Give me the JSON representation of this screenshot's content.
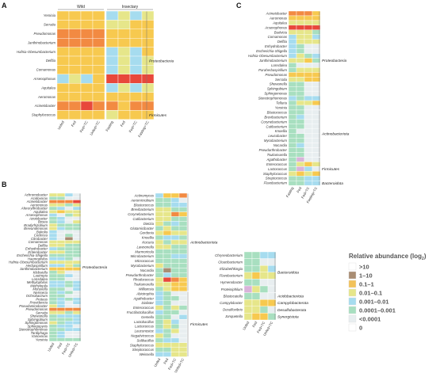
{
  "palette": {
    "6": "#e8483b",
    "5": "#f28a42",
    "4": "#f7c94f",
    "3": "#e6e68a",
    "2": "#a8dfc0",
    "1": "#a6dcef",
    "0": "#e8eef0",
    "9": "#a98d73",
    "8": "#d9b3da",
    "e": "#ffffff"
  },
  "legend": {
    "title": "Relative abundance (log",
    "title_sub": "2",
    "title_end": ")",
    "items": [
      {
        "label": ">10",
        "color": "#ffffff"
      },
      {
        "label": "1–10",
        "color": "#a98d73"
      },
      {
        "label": "0.1–1",
        "color": "#f2c25a"
      },
      {
        "label": "0.01–0.1",
        "color": "#e6e68a"
      },
      {
        "label": "0.001–0.01",
        "color": "#a6dcef"
      },
      {
        "label": "0.0001–0.001",
        "color": "#a8dfc0"
      },
      {
        "label": "<0.0001",
        "color": "#e8eef0"
      },
      {
        "label": "0",
        "color": "#ffffff"
      }
    ]
  },
  "chart_data": [
    {
      "type": "heatmap",
      "panel": "A",
      "column_groups": [
        {
          "name": "Wild",
          "columns": 4
        },
        {
          "name": "Insectary",
          "columns": 4
        }
      ],
      "columns": [
        "Unfed",
        "Fed",
        "Fed+TC",
        "Unfed+TC",
        "Fasting",
        "Fed",
        "Fed+TC",
        "Fasting+TC"
      ],
      "rows": [
        "Yersinia",
        "Serratia",
        "Pseudomonas",
        "Janthinobacterium",
        "Hafnia-Obesumbacterium",
        "Delftia",
        "Comamonas",
        "Arsenophonus",
        "Aquitalea",
        "Aeromonas",
        "Acinetobacter",
        "Staphylococcus"
      ],
      "values": [
        "44441313",
        "44443344",
        "55554444",
        "55554444",
        "44441314",
        "44441313",
        "44441313",
        "13146666",
        "44441313",
        "44444444",
        "55655455",
        "44443444"
      ],
      "phyla": [
        {
          "name": "Proteobacteria",
          "from": 0,
          "to": 10
        },
        {
          "name": "Firmicutes",
          "from": 11,
          "to": 11
        }
      ]
    },
    {
      "type": "heatmap",
      "panel": "B-left",
      "columns": [
        "Unfed",
        "Fed",
        "Fed+TC",
        "Unfed+TC"
      ],
      "rows": [
        "Achromobacter",
        "Acidovorax",
        "Acinetobacter",
        "Aeromonas",
        "Afererythrobacter",
        "Aquitalea",
        "Arsenophonus",
        "Azotobacter",
        "Bosea",
        "Bradyrhizobium",
        "Brevundimonas",
        "Bukolia",
        "Cedecea",
        "Citrobacter",
        "Comamonas",
        "Delftia",
        "Enhydrobacter",
        "Enterobacter",
        "Escherichia-Shigella",
        "Haemophilus",
        "Hafnia-Obesumbacterium",
        "Herbaspirillum",
        "Janthinobacterium",
        "Klebsiella",
        "Lautropia",
        "Lonsdalea",
        "Methylophilus",
        "Methylopila",
        "Moraxella",
        "Neisseria",
        "Ochrobactrum",
        "Proteus",
        "Providencia",
        "Pseudaminobacter",
        "Pseudomonas",
        "Serratia",
        "Shewanella",
        "Sphingobium",
        "Sphingomonas",
        "Sphingopyxis",
        "Stenotrophomonas",
        "Tardiphaga",
        "Vanovorax",
        "Yersinia"
      ],
      "values": [
        "3310",
        "2200",
        "5556",
        "3323",
        "2101",
        "3433",
        "1023",
        "2100",
        "2103",
        "3222",
        "3122",
        "1000",
        "1020",
        "1090",
        "3333",
        "3322",
        "1222",
        "3322",
        "2222",
        "1120",
        "3333",
        "1132",
        "4444",
        "2300",
        "2210",
        "2200",
        "1121",
        "1121",
        "2201",
        "2120",
        "2200",
        "2121",
        "2101",
        "3100",
        "5555",
        "3323",
        "2111",
        "2221",
        "3211",
        "2110",
        "2211",
        "2100",
        "2100",
        "2222"
      ],
      "phyla": [
        {
          "name": "Proteobacteria",
          "from": 0,
          "to": 43
        }
      ]
    },
    {
      "type": "heatmap",
      "panel": "B-right",
      "columns": [
        "Unfed",
        "Fed",
        "Fed+TC",
        "Unfed+TC"
      ],
      "rows": [
        "Actinomyces",
        "Aeromicrobium",
        "Blastococcus",
        "Brevibacterium",
        "Corynebacterium",
        "Cutibacterium",
        "Dietzia",
        "Glutamicibacter",
        "Gordonia",
        "Knoellia",
        "Kocuria",
        "Lawsonella",
        "Marmoricola",
        "Microbacterium",
        "Micrococcus",
        "Mycobacterium",
        "Nocardia",
        "Pseudarthrobacter",
        "Rhodococcus",
        "Tsukamurella",
        "Williamsia",
        "Abiotrophia",
        "Agathobacter",
        "Dialister",
        "Enterococcus",
        "Fructilactobacillus",
        "Gemella",
        "Lactobacillus",
        "Lactococcus",
        "Leuconostoc",
        "Negativicoccus",
        "Solibacillus",
        "Staphylococcus",
        "Streptococcus",
        "Weissella"
      ],
      "values": [
        "1445",
        "2210",
        "2211",
        "3322",
        "3354",
        "3322",
        "3212",
        "2322",
        "3433",
        "2112",
        "3233",
        "3322",
        "2222",
        "2211",
        "2222",
        "3222",
        "2922",
        "2122",
        "3654",
        "3344",
        "2344",
        "1200",
        "1220",
        "1200",
        "3232",
        "1220",
        "2201",
        "2310",
        "2320",
        "1230",
        "3200",
        "2110",
        "3333",
        "2233",
        "1133"
      ],
      "phyla": [
        {
          "name": "Actinobacteriota",
          "from": 0,
          "to": 20
        },
        {
          "name": "Firmicutes",
          "from": 21,
          "to": 34
        }
      ]
    },
    {
      "type": "heatmap",
      "panel": "C",
      "columns": [
        "Fasting",
        "Fed",
        "Fed+TC",
        "Fasting+TC"
      ],
      "rows": [
        "Acinetobacter",
        "Aeromonas",
        "Aquitalea",
        "Arsenophonus",
        "Budvicia",
        "Comamonas",
        "Delftia",
        "Enhydrobacter",
        "Escherichia-Shigella",
        "Hafnia-Obesumbacterium",
        "Janthinobacterium",
        "Lonsdalea",
        "Paraherbaspirillum",
        "Pseudomonas",
        "Serratia",
        "Shewanella",
        "Sphingobium",
        "Sphingomonas",
        "Stenotrophomonas",
        "Telluria",
        "Yersinia",
        "Blastococcus",
        "Brevibacterium",
        "Corynebacterium",
        "Cutibacterium",
        "Knoellia",
        "Leucobacter",
        "Mycobacterium",
        "Nocardia",
        "Pseudarthrobacter",
        "Tsukamurella",
        "Agathobacter",
        "Enterococcus",
        "Lactococcus",
        "Staphylococcus",
        "Streptococcus",
        "Flavobacterium"
      ],
      "values": [
        "5554",
        "4444",
        "3333",
        "6666",
        "3332",
        "1331",
        "1333",
        "1200",
        "1200",
        "1321",
        "3342",
        "2000",
        "2333",
        "4444",
        "3344",
        "2200",
        "2200",
        "2200",
        "1211",
        "2334",
        "2200",
        "2200",
        "2100",
        "2200",
        "2200",
        "2000",
        "2200",
        "2200",
        "2100",
        "2200",
        "2200",
        "2800",
        "2343",
        "2810",
        "3434",
        "2211",
        "2211"
      ],
      "phyla": [
        {
          "name": "Proteobacteria",
          "from": 0,
          "to": 20
        },
        {
          "name": "Actinobacteriota",
          "from": 21,
          "to": 30
        },
        {
          "name": "Firmicutes",
          "from": 31,
          "to": 35
        },
        {
          "name": "Bacteroidota",
          "from": 36,
          "to": 36
        }
      ]
    },
    {
      "type": "heatmap",
      "panel": "C-lower",
      "columns": [
        "Unfed",
        "Fed",
        "Fed+TC",
        "Unfed+TC"
      ],
      "rows": [
        "Chryseobacterium",
        "Cloacibacterium",
        "Elizabethkingia",
        "Flavobacterium",
        "Hymenobacter",
        "Proteiniphilum",
        "Blastocatella",
        "Campylobacter",
        "Desulfovibrio",
        "Jonquetella"
      ],
      "values": [
        "2211",
        "2200",
        "2231",
        "3433",
        "2200",
        "8320",
        "2200",
        "3344",
        "3320",
        "3442"
      ],
      "phyla": [
        {
          "name": "Bacteroidota",
          "from": 0,
          "to": 5
        },
        {
          "name": "Acidobacteriota",
          "from": 6,
          "to": 6
        },
        {
          "name": "Campylobacterota",
          "from": 7,
          "to": 7
        },
        {
          "name": "Desulfobacterota",
          "from": 8,
          "to": 8
        },
        {
          "name": "Synergistota",
          "from": 9,
          "to": 9
        }
      ]
    }
  ]
}
